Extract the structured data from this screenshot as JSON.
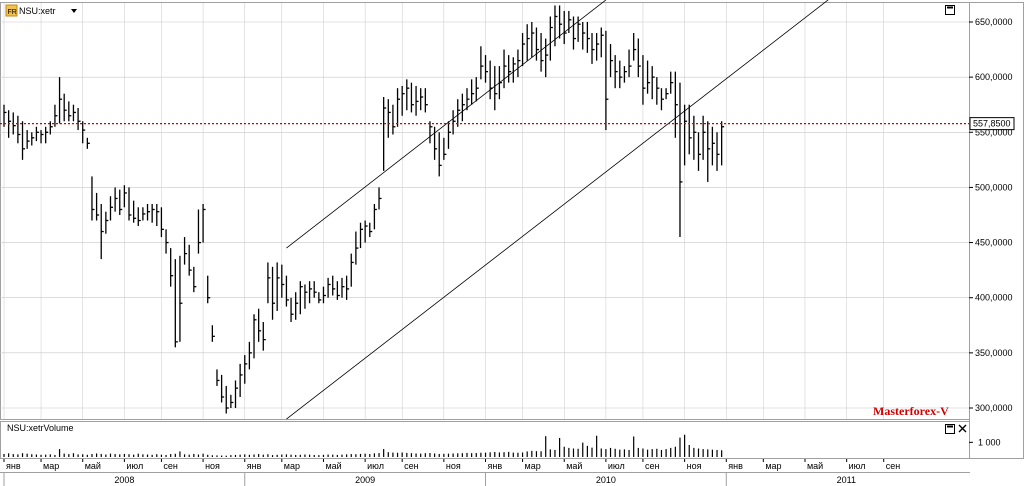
{
  "header": {
    "symbol_label": "NSU:xetr",
    "badge_text": "FR",
    "volume_label": "NSU:xetrVolume",
    "watermark": "Masterforex-V",
    "close_icon": "close-icon",
    "maximize_icon": "maximize-icon",
    "dropdown_icon": "chevron-down-icon"
  },
  "colors": {
    "price_bar": "#000000",
    "price_line": "#d00000",
    "channel": "#000000",
    "grid": "#c8c8c8",
    "watermark": "#d00000"
  },
  "chart_data": {
    "type": "bar",
    "price_axis": {
      "ticks": [
        "650,0000",
        "600,0000",
        "550,0000",
        "500,0000",
        "450,0000",
        "400,0000",
        "350,0000",
        "300,0000"
      ],
      "tick_values": [
        650,
        600,
        550,
        500,
        450,
        400,
        350,
        300
      ],
      "current_price_label": "557,8500",
      "current_price": 557.85
    },
    "volume_axis": {
      "ticks": [
        "1 000"
      ],
      "tick_values": [
        1000
      ]
    },
    "x_axis": {
      "months": [
        {
          "label": "янв",
          "i": 0
        },
        {
          "label": "мар",
          "i": 8
        },
        {
          "label": "май",
          "i": 17
        },
        {
          "label": "июл",
          "i": 26
        },
        {
          "label": "сен",
          "i": 34
        },
        {
          "label": "ноя",
          "i": 43
        },
        {
          "label": "янв",
          "i": 52
        },
        {
          "label": "мар",
          "i": 60
        },
        {
          "label": "май",
          "i": 69
        },
        {
          "label": "июл",
          "i": 78
        },
        {
          "label": "сен",
          "i": 86
        },
        {
          "label": "ноя",
          "i": 95
        },
        {
          "label": "янв",
          "i": 104
        },
        {
          "label": "мар",
          "i": 112
        },
        {
          "label": "май",
          "i": 121
        },
        {
          "label": "июл",
          "i": 130
        },
        {
          "label": "сен",
          "i": 138
        },
        {
          "label": "ноя",
          "i": 147
        },
        {
          "label": "янв",
          "i": 156
        },
        {
          "label": "мар",
          "i": 164
        },
        {
          "label": "май",
          "i": 173
        },
        {
          "label": "июл",
          "i": 182
        },
        {
          "label": "сен",
          "i": 190
        }
      ],
      "years": [
        {
          "label": "2008",
          "start": 0,
          "end": 52
        },
        {
          "label": "2009",
          "start": 52,
          "end": 104
        },
        {
          "label": "2010",
          "start": 104,
          "end": 156
        },
        {
          "label": "2011",
          "start": 156,
          "end": 208
        }
      ]
    },
    "channel_lines": [
      {
        "from": {
          "i": 61,
          "price": 445
        },
        "to": {
          "i": 130,
          "price": 670
        }
      },
      {
        "from": {
          "i": 61,
          "price": 290
        },
        "to": {
          "i": 178,
          "price": 670
        }
      }
    ],
    "weekly_hlc": [
      [
        575,
        555,
        568
      ],
      [
        570,
        545,
        560
      ],
      [
        568,
        548,
        556
      ],
      [
        565,
        540,
        548
      ],
      [
        560,
        525,
        535
      ],
      [
        552,
        535,
        542
      ],
      [
        550,
        538,
        545
      ],
      [
        555,
        542,
        550
      ],
      [
        552,
        540,
        548
      ],
      [
        555,
        540,
        550
      ],
      [
        560,
        548,
        555
      ],
      [
        575,
        555,
        565
      ],
      [
        600,
        558,
        580
      ],
      [
        585,
        560,
        570
      ],
      [
        578,
        560,
        565
      ],
      [
        575,
        560,
        568
      ],
      [
        572,
        552,
        560
      ],
      [
        560,
        540,
        552
      ],
      [
        545,
        535,
        540
      ],
      [
        510,
        470,
        480
      ],
      [
        495,
        470,
        475
      ],
      [
        485,
        435,
        460
      ],
      [
        478,
        458,
        470
      ],
      [
        492,
        470,
        482
      ],
      [
        500,
        478,
        490
      ],
      [
        498,
        475,
        480
      ],
      [
        502,
        482,
        495
      ],
      [
        500,
        470,
        475
      ],
      [
        488,
        468,
        472
      ],
      [
        482,
        465,
        470
      ],
      [
        482,
        470,
        476
      ],
      [
        485,
        470,
        478
      ],
      [
        485,
        468,
        480
      ],
      [
        485,
        465,
        478
      ],
      [
        482,
        455,
        462
      ],
      [
        462,
        440,
        450
      ],
      [
        445,
        410,
        420
      ],
      [
        435,
        355,
        360
      ],
      [
        438,
        360,
        395
      ],
      [
        455,
        430,
        440
      ],
      [
        448,
        420,
        425
      ],
      [
        428,
        405,
        410
      ],
      [
        480,
        440,
        450
      ],
      [
        485,
        450,
        480
      ],
      [
        420,
        395,
        400
      ],
      [
        375,
        360,
        365
      ],
      [
        335,
        320,
        325
      ],
      [
        330,
        305,
        310
      ],
      [
        320,
        295,
        300
      ],
      [
        312,
        300,
        305
      ],
      [
        325,
        300,
        318
      ],
      [
        340,
        310,
        330
      ],
      [
        348,
        322,
        340
      ],
      [
        360,
        335,
        350
      ],
      [
        385,
        345,
        380
      ],
      [
        390,
        360,
        370
      ],
      [
        378,
        352,
        362
      ],
      [
        432,
        395,
        418
      ],
      [
        428,
        380,
        395
      ],
      [
        432,
        388,
        418
      ],
      [
        430,
        400,
        412
      ],
      [
        420,
        392,
        398
      ],
      [
        400,
        378,
        385
      ],
      [
        405,
        380,
        395
      ],
      [
        415,
        385,
        410
      ],
      [
        412,
        390,
        405
      ],
      [
        415,
        395,
        408
      ],
      [
        415,
        400,
        405
      ],
      [
        405,
        395,
        398
      ],
      [
        410,
        395,
        402
      ],
      [
        418,
        400,
        412
      ],
      [
        420,
        402,
        408
      ],
      [
        415,
        398,
        402
      ],
      [
        418,
        400,
        410
      ],
      [
        420,
        398,
        408
      ],
      [
        440,
        410,
        432
      ],
      [
        460,
        430,
        445
      ],
      [
        468,
        445,
        462
      ],
      [
        470,
        450,
        465
      ],
      [
        468,
        455,
        460
      ],
      [
        485,
        462,
        480
      ],
      [
        500,
        480,
        490
      ],
      [
        582,
        515,
        572
      ],
      [
        580,
        545,
        568
      ],
      [
        575,
        548,
        555
      ],
      [
        590,
        555,
        580
      ],
      [
        592,
        565,
        585
      ],
      [
        598,
        570,
        590
      ],
      [
        595,
        568,
        575
      ],
      [
        592,
        565,
        578
      ],
      [
        590,
        570,
        582
      ],
      [
        590,
        568,
        575
      ],
      [
        560,
        540,
        555
      ],
      [
        555,
        525,
        535
      ],
      [
        550,
        510,
        520
      ],
      [
        545,
        525,
        530
      ],
      [
        560,
        535,
        550
      ],
      [
        570,
        548,
        560
      ],
      [
        580,
        555,
        570
      ],
      [
        585,
        560,
        575
      ],
      [
        590,
        570,
        580
      ],
      [
        598,
        575,
        585
      ],
      [
        600,
        578,
        590
      ],
      [
        628,
        598,
        610
      ],
      [
        620,
        595,
        605
      ],
      [
        615,
        580,
        590
      ],
      [
        610,
        570,
        585
      ],
      [
        610,
        580,
        595
      ],
      [
        625,
        590,
        610
      ],
      [
        620,
        595,
        605
      ],
      [
        618,
        595,
        612
      ],
      [
        625,
        600,
        615
      ],
      [
        640,
        610,
        630
      ],
      [
        648,
        615,
        635
      ],
      [
        650,
        618,
        640
      ],
      [
        645,
        615,
        625
      ],
      [
        640,
        605,
        615
      ],
      [
        635,
        600,
        620
      ],
      [
        655,
        615,
        645
      ],
      [
        665,
        628,
        655
      ],
      [
        665,
        635,
        648
      ],
      [
        660,
        630,
        640
      ],
      [
        660,
        640,
        652
      ],
      [
        655,
        625,
        635
      ],
      [
        655,
        632,
        648
      ],
      [
        650,
        625,
        640
      ],
      [
        650,
        622,
        635
      ],
      [
        640,
        612,
        625
      ],
      [
        640,
        615,
        630
      ],
      [
        645,
        618,
        638
      ],
      [
        642,
        552,
        580
      ],
      [
        630,
        600,
        615
      ],
      [
        620,
        590,
        605
      ],
      [
        615,
        590,
        600
      ],
      [
        610,
        595,
        605
      ],
      [
        625,
        600,
        610
      ],
      [
        640,
        615,
        625
      ],
      [
        635,
        600,
        610
      ],
      [
        620,
        575,
        590
      ],
      [
        615,
        585,
        595
      ],
      [
        610,
        580,
        600
      ],
      [
        600,
        575,
        590
      ],
      [
        590,
        570,
        580
      ],
      [
        590,
        580,
        585
      ],
      [
        605,
        585,
        595
      ],
      [
        605,
        545,
        575
      ],
      [
        595,
        455,
        505
      ],
      [
        575,
        520,
        560
      ],
      [
        575,
        530,
        545
      ],
      [
        565,
        525,
        550
      ],
      [
        550,
        515,
        530
      ],
      [
        565,
        525,
        550
      ],
      [
        560,
        505,
        535
      ],
      [
        555,
        520,
        540
      ],
      [
        550,
        515,
        530
      ],
      [
        560,
        520,
        555
      ]
    ],
    "weekly_volume": [
      210,
      250,
      200,
      180,
      260,
      230,
      190,
      170,
      150,
      160,
      180,
      140,
      540,
      230,
      200,
      260,
      180,
      190,
      150,
      200,
      240,
      210,
      170,
      230,
      200,
      180,
      210,
      190,
      160,
      230,
      180,
      170,
      150,
      190,
      160,
      140,
      200,
      220,
      380,
      180,
      160,
      210,
      170,
      230,
      150,
      120,
      110,
      100,
      90,
      130,
      140,
      160,
      180,
      150,
      170,
      200,
      160,
      190,
      130,
      150,
      170,
      180,
      160,
      140,
      150,
      170,
      160,
      140,
      130,
      150,
      170,
      160,
      140,
      160,
      180,
      200,
      190,
      210,
      230,
      200,
      250,
      270,
      540,
      330,
      300,
      290,
      310,
      280,
      260,
      240,
      230,
      260,
      270,
      240,
      210,
      220,
      230,
      240,
      250,
      260,
      280,
      260,
      270,
      290,
      300,
      320,
      340,
      310,
      330,
      350,
      300,
      290,
      310,
      380,
      420,
      400,
      390,
      1420,
      520,
      480,
      1300,
      700,
      620,
      580,
      560,
      980,
      760,
      640,
      1450,
      580,
      540,
      620,
      560,
      500,
      520,
      480,
      1400,
      620,
      580,
      500,
      540,
      560,
      480,
      540,
      620,
      700,
      1320,
      1520,
      820,
      620,
      580,
      540,
      520,
      500,
      480,
      460
    ]
  }
}
